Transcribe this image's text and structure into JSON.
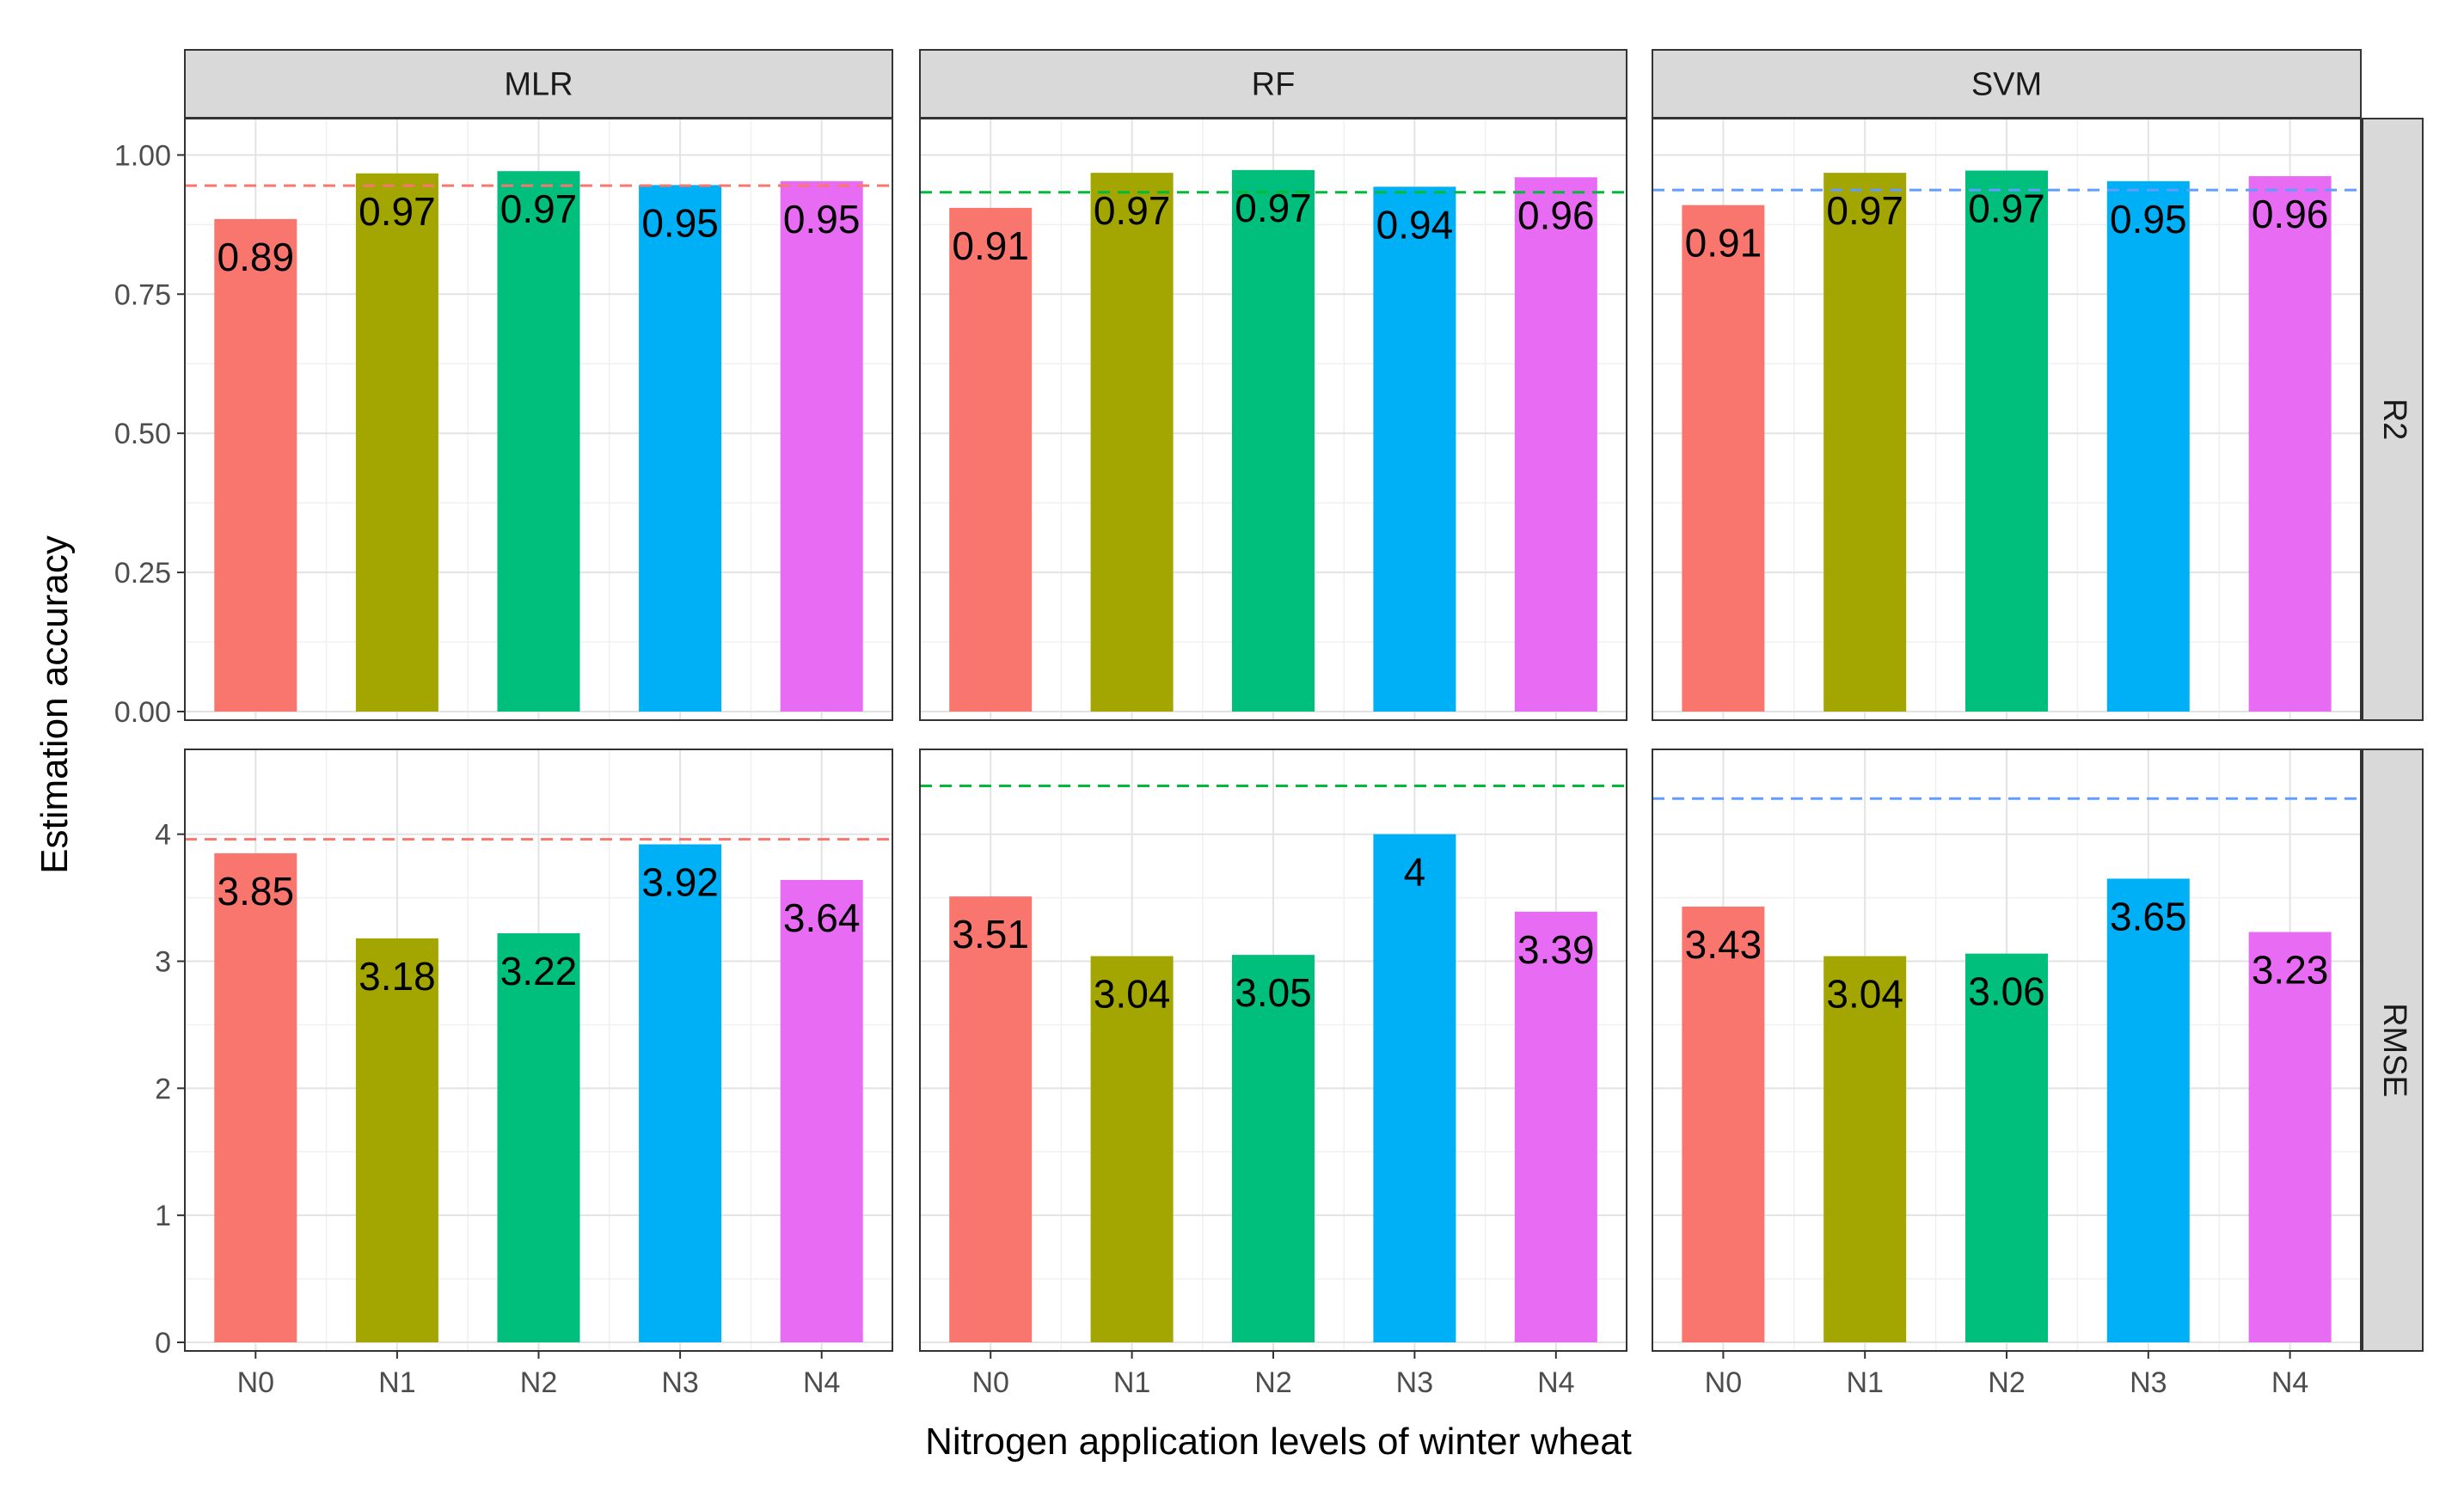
{
  "chart_data": {
    "type": "bar",
    "layout": "facet-grid",
    "xlabel": "Nitrogen application levels of winter wheat",
    "ylabel": "Estimation accuracy",
    "categories": [
      "N0",
      "N1",
      "N2",
      "N3",
      "N4"
    ],
    "column_facets": [
      "MLR",
      "RF",
      "SVM"
    ],
    "row_facets": [
      "R2",
      "RMSE"
    ],
    "grid": true,
    "legend": "none",
    "category_colors": [
      "#f8766d",
      "#a3a500",
      "#00bf7d",
      "#00b0f6",
      "#e76bf3"
    ],
    "facet_colors": [
      "#f8766d",
      "#00ba38",
      "#619cff"
    ],
    "rows": [
      {
        "name": "R2",
        "ylim": [
          0,
          1.05
        ],
        "yticks": [
          0,
          0.25,
          0.5,
          0.75,
          1
        ],
        "ytick_labels": [
          "0.00",
          "0.25",
          "0.50",
          "0.75",
          "1.00"
        ],
        "panels": [
          {
            "model": "MLR",
            "values": [
              0.885,
              0.967,
              0.971,
              0.946,
              0.953
            ],
            "labels": [
              "0.89",
              "0.97",
              "0.97",
              "0.95",
              "0.95"
            ],
            "reference": 0.945
          },
          {
            "model": "RF",
            "values": [
              0.905,
              0.968,
              0.973,
              0.943,
              0.96
            ],
            "labels": [
              "0.91",
              "0.97",
              "0.97",
              "0.94",
              "0.96"
            ],
            "reference": 0.933
          },
          {
            "model": "SVM",
            "values": [
              0.91,
              0.968,
              0.972,
              0.953,
              0.962
            ],
            "labels": [
              "0.91",
              "0.97",
              "0.97",
              "0.95",
              "0.96"
            ],
            "reference": 0.937
          }
        ]
      },
      {
        "name": "RMSE",
        "ylim": [
          0,
          4.6
        ],
        "yticks": [
          0,
          1,
          2,
          3,
          4
        ],
        "ytick_labels": [
          "0",
          "1",
          "2",
          "3",
          "4"
        ],
        "panels": [
          {
            "model": "MLR",
            "values": [
              3.85,
              3.18,
              3.22,
              3.92,
              3.64
            ],
            "labels": [
              "3.85",
              "3.18",
              "3.22",
              "3.92",
              "3.64"
            ],
            "reference": 3.96
          },
          {
            "model": "RF",
            "values": [
              3.51,
              3.04,
              3.05,
              4.0,
              3.39
            ],
            "labels": [
              "3.51",
              "3.04",
              "3.05",
              "4",
              "3.39"
            ],
            "reference": 4.38
          },
          {
            "model": "SVM",
            "values": [
              3.43,
              3.04,
              3.06,
              3.65,
              3.23
            ],
            "labels": [
              "3.43",
              "3.04",
              "3.06",
              "3.65",
              "3.23"
            ],
            "reference": 4.28
          }
        ]
      }
    ]
  }
}
